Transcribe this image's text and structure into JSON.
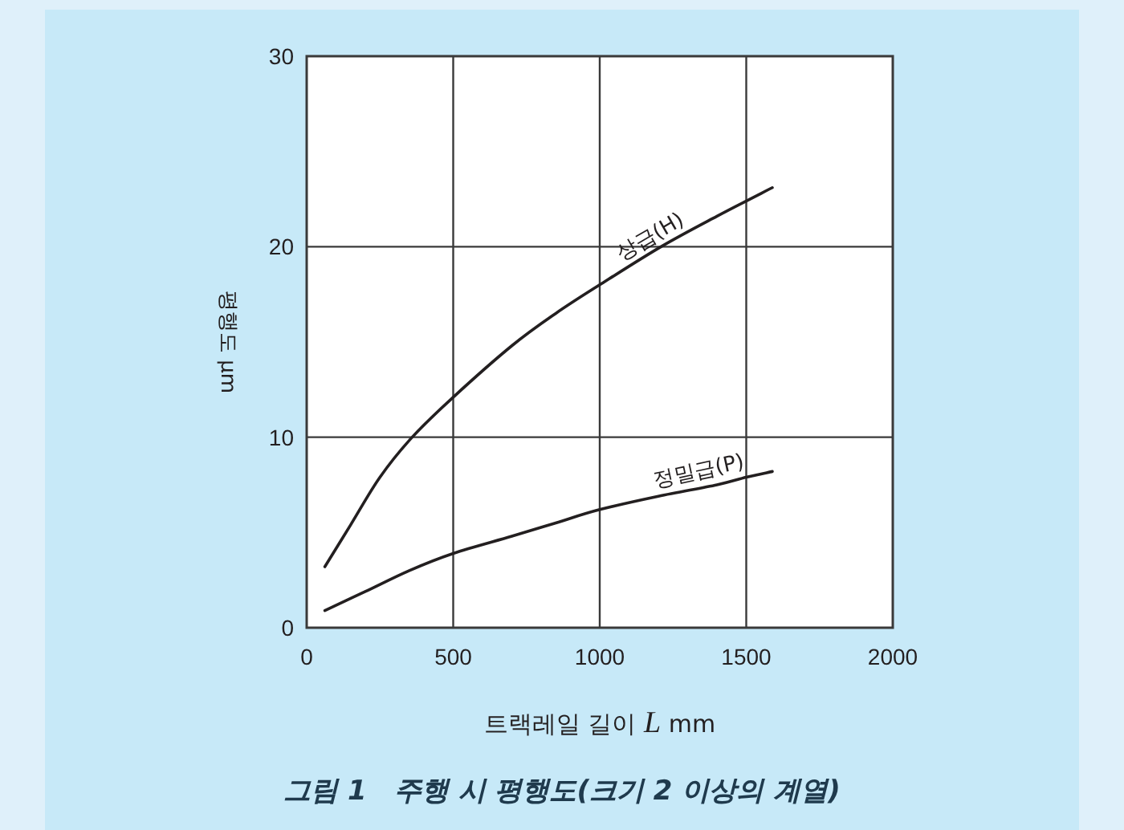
{
  "chart_data": {
    "type": "line",
    "title": "그림 1　주행 시 평행도(크기 2 이상의 계열)",
    "xlabel": "트랙레일 길이 *L* mm",
    "ylabel": "평행도 μm",
    "xlim": [
      0,
      2000
    ],
    "xticks": [
      0,
      500,
      1000,
      1500,
      2000
    ],
    "ylim": [
      0,
      30
    ],
    "yticks": [
      0,
      10,
      20,
      30
    ],
    "grid": true,
    "marker": "none",
    "line_style": "solid",
    "series": [
      {
        "name": "상급(H)",
        "color": "#231f20",
        "x": [
          62,
          150,
          250,
          360,
          500,
          700,
          850,
          1000,
          1209,
          1400,
          1589
        ],
        "values": [
          3.2,
          5.4,
          7.9,
          10,
          12.1,
          14.8,
          16.5,
          18.0,
          20,
          21.6,
          23.1
        ]
      },
      {
        "name": "정밀급(P)",
        "color": "#231f20",
        "x": [
          62,
          200,
          350,
          500,
          700,
          850,
          1000,
          1200,
          1400,
          1500,
          1589
        ],
        "values": [
          0.9,
          1.9,
          3.0,
          3.9,
          4.8,
          5.5,
          6.2,
          6.9,
          7.5,
          7.9,
          8.2
        ]
      }
    ]
  }
}
